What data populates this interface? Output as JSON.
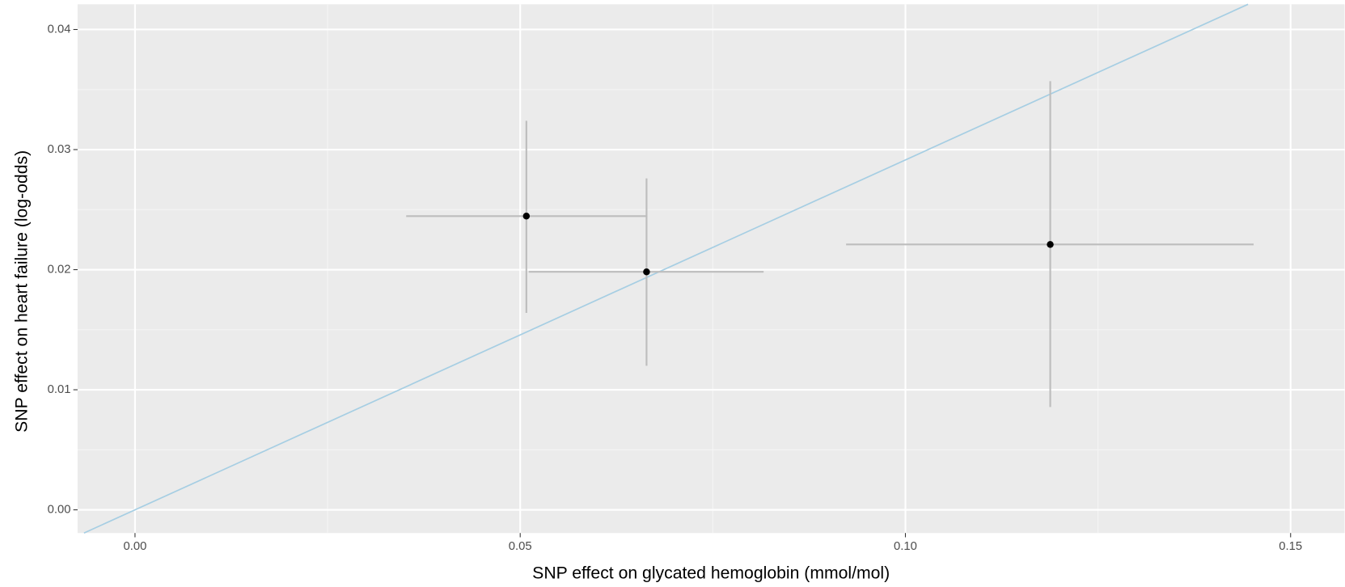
{
  "chart_data": {
    "type": "scatter",
    "x_label": "SNP effect on glycated hemoglobin (mmol/mol)",
    "y_label": "SNP effect on heart failure (log-odds)",
    "x": [
      0.0508,
      0.0664,
      0.1188
    ],
    "values": [
      0.02446,
      0.01982,
      0.0221
    ],
    "x_lower": [
      0.0352,
      0.0511,
      0.0923
    ],
    "x_upper": [
      0.0665,
      0.0816,
      0.1452
    ],
    "y_lower": [
      0.0164,
      0.012,
      0.00856
    ],
    "y_upper": [
      0.0324,
      0.0276,
      0.0357
    ],
    "color": "#000000",
    "error_color": "#bdbdbd",
    "fit_line": {
      "slope": 0.2914,
      "intercept": 0,
      "color": "#a6cee3"
    },
    "xlim": [
      -0.00745,
      0.157
    ],
    "ylim": [
      -0.00193,
      0.0421
    ],
    "xticks": [
      {
        "value": 0,
        "label": "0.00"
      },
      0.05,
      {
        "value": 0.1,
        "label": "0.10"
      },
      0.15
    ],
    "yticks": [
      {
        "value": 0,
        "label": "0.00"
      },
      0.01,
      0.02,
      0.03,
      0.04
    ],
    "x_minor_ticks": [
      0.025,
      0.075,
      0.125
    ],
    "y_minor_ticks": [
      0.005,
      0.015,
      0.025,
      0.035
    ],
    "grid": true
  }
}
